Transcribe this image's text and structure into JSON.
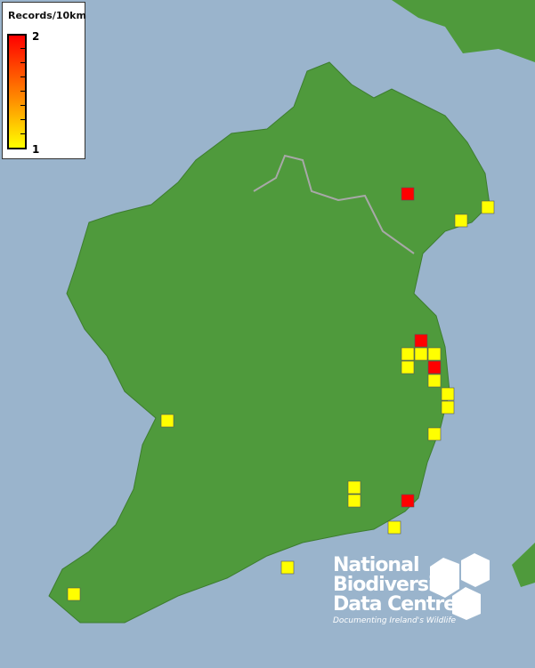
{
  "legend": {
    "title": "Records/10km",
    "max_label": "2",
    "min_label": "1",
    "colors": {
      "max": "#ff0000",
      "min": "#ffff00"
    }
  },
  "records": [
    2,
    1,
    1,
    2,
    1,
    1,
    1,
    1,
    2,
    1,
    1,
    1,
    1,
    1,
    1,
    1,
    2,
    1,
    1,
    1
  ],
  "colors": {
    "sea": "#9ab4cc",
    "land": "#4f9a3c",
    "border": "#a8a8a8"
  },
  "logo": {
    "line1": "National",
    "line2": "Biodiversity",
    "line3": "Data Centre",
    "tagline": "Documenting Ireland's Wildlife"
  }
}
